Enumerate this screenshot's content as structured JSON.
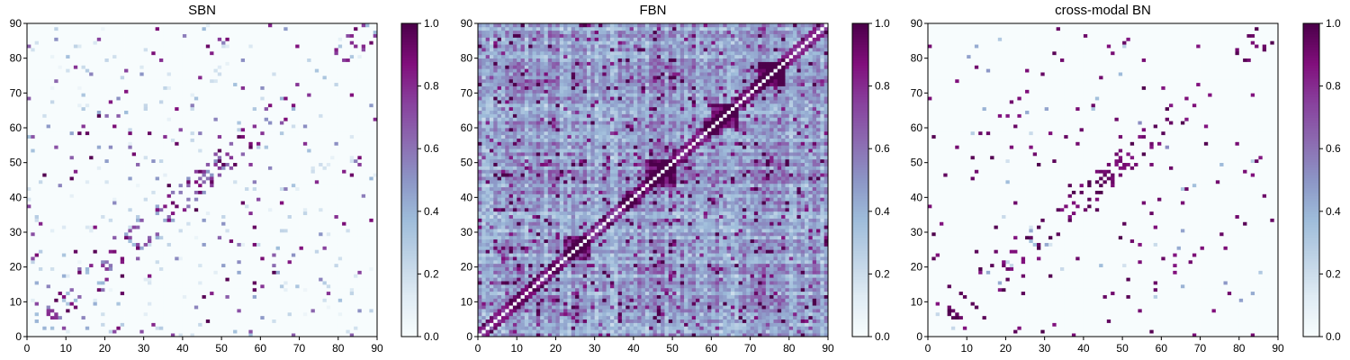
{
  "chart_data": [
    {
      "type": "heatmap",
      "title": "SBN",
      "x_range": [
        0,
        90
      ],
      "y_range": [
        0,
        90
      ],
      "matrix_size": 90,
      "x_ticks": [
        0,
        10,
        20,
        30,
        40,
        50,
        60,
        70,
        80,
        90
      ],
      "y_ticks": [
        0,
        10,
        20,
        30,
        40,
        50,
        60,
        70,
        80,
        90
      ],
      "colorbar": {
        "range": [
          0,
          1
        ],
        "ticks": [
          "0.0",
          "0.2",
          "0.4",
          "0.6",
          "0.8",
          "1.0"
        ]
      },
      "colormap": [
        "#f7fcfd",
        "#e0ecf4",
        "#bfd3e6",
        "#9ebcda",
        "#8c96c6",
        "#8c6bb1",
        "#88419d",
        "#810f7c",
        "#4d004b"
      ],
      "grid": false,
      "pattern": "sparse structural connectivity; strong symmetric entries concentrated near the diagonal and along a few homotopic off-diagonal bands"
    },
    {
      "type": "heatmap",
      "title": "FBN",
      "x_range": [
        0,
        90
      ],
      "y_range": [
        0,
        90
      ],
      "matrix_size": 90,
      "x_ticks": [
        0,
        10,
        20,
        30,
        40,
        50,
        60,
        70,
        80,
        90
      ],
      "y_ticks": [
        0,
        10,
        20,
        30,
        40,
        50,
        60,
        70,
        80,
        90
      ],
      "colorbar": {
        "range": [
          0,
          1
        ],
        "ticks": [
          "0.0",
          "0.2",
          "0.4",
          "0.6",
          "0.8",
          "1.0"
        ]
      },
      "colormap": [
        "#f7fcfd",
        "#e0ecf4",
        "#bfd3e6",
        "#9ebcda",
        "#8c96c6",
        "#8c6bb1",
        "#88419d",
        "#810f7c",
        "#4d004b"
      ],
      "grid": false,
      "pattern": "dense functional connectivity; bright diagonal, strong blocks around nodes 22-28, 37-40, 43-50 and 72-78, widespread medium values elsewhere"
    },
    {
      "type": "heatmap",
      "title": "cross-modal BN",
      "x_range": [
        0,
        90
      ],
      "y_range": [
        0,
        90
      ],
      "matrix_size": 90,
      "x_ticks": [
        0,
        10,
        20,
        30,
        40,
        50,
        60,
        70,
        80,
        90
      ],
      "y_ticks": [
        0,
        10,
        20,
        30,
        40,
        50,
        60,
        70,
        80,
        90
      ],
      "colorbar": {
        "range": [
          0,
          1
        ],
        "ticks": [
          "0.0",
          "0.2",
          "0.4",
          "0.6",
          "0.8",
          "1.0"
        ]
      },
      "colormap": [
        "#f7fcfd",
        "#e0ecf4",
        "#bfd3e6",
        "#9ebcda",
        "#8c96c6",
        "#8c6bb1",
        "#88419d",
        "#810f7c",
        "#4d004b"
      ],
      "grid": false,
      "pattern": "very sparse, nearly binary connections following the structural pattern; almost all other cells near zero"
    }
  ]
}
